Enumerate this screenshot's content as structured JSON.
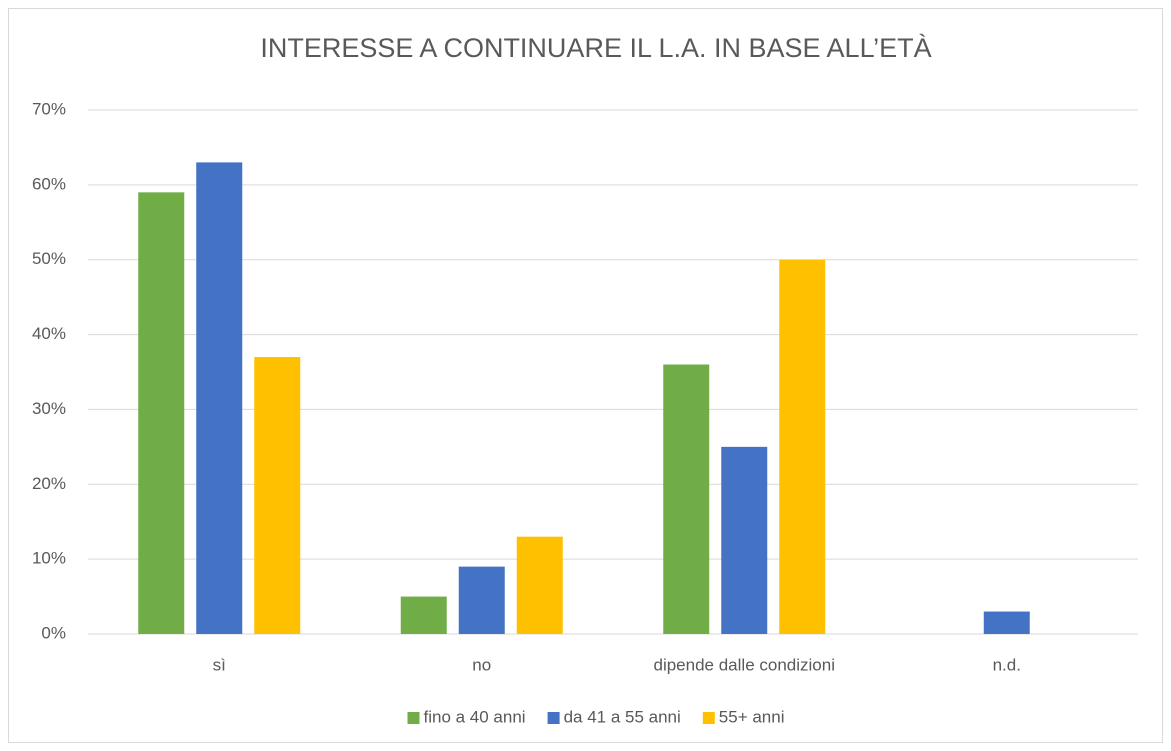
{
  "chart_data": {
    "type": "bar",
    "title": "INTERESSE A CONTINUARE IL L.A. IN BASE ALL’ETÀ",
    "categories": [
      "sì",
      "no",
      "dipende dalle condizioni",
      "n.d."
    ],
    "series": [
      {
        "name": "fino a 40 anni",
        "color": "#70ad47",
        "values": [
          59,
          5,
          36,
          0
        ]
      },
      {
        "name": "da 41 a 55 anni",
        "color": "#4472c4",
        "values": [
          63,
          9,
          25,
          3
        ]
      },
      {
        "name": "55+ anni",
        "color": "#ffc000",
        "values": [
          37,
          13,
          50,
          0
        ]
      }
    ],
    "ylim": [
      0,
      70
    ],
    "yticks": [
      {
        "value": 0,
        "label": "0%"
      },
      {
        "value": 10,
        "label": "10%"
      },
      {
        "value": 20,
        "label": "20%"
      },
      {
        "value": 30,
        "label": "30%"
      },
      {
        "value": 40,
        "label": "40%"
      },
      {
        "value": 50,
        "label": "50%"
      },
      {
        "value": 60,
        "label": "60%"
      },
      {
        "value": 70,
        "label": "70%"
      }
    ],
    "grid": true,
    "legend": "bottom"
  }
}
